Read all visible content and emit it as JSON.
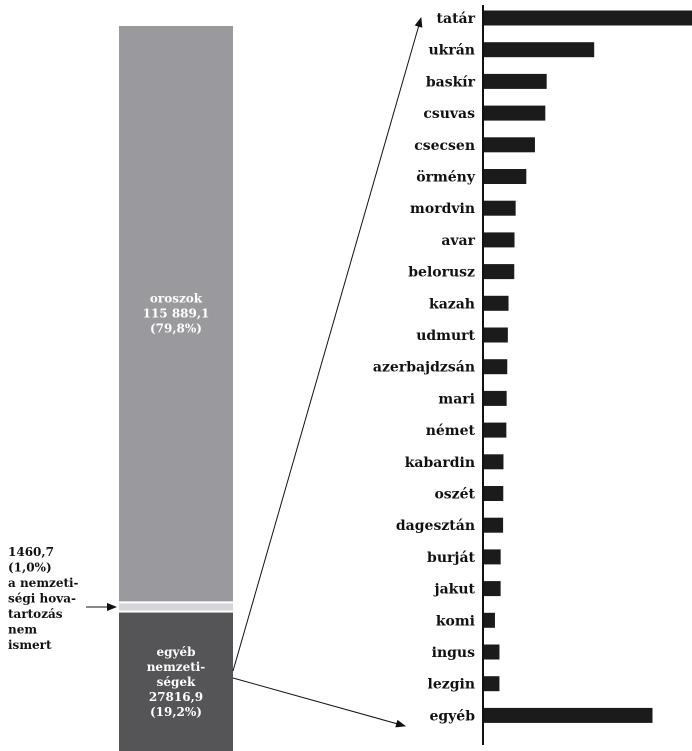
{
  "chart_data": {
    "type": "bar",
    "stacked_column": {
      "segments": [
        {
          "key": "orosz",
          "label_lines": [
            "oroszok",
            "115 889,1",
            "(79,8%)"
          ],
          "value": 115889.1,
          "percent": 79.8,
          "color": "#9a9a9e"
        },
        {
          "key": "ismeretlen",
          "label_lines": [],
          "value": 1460.7,
          "percent": 1.0,
          "color": "#d6d6d8"
        },
        {
          "key": "egyeb",
          "label_lines": [
            "egyéb",
            "nemzeti-",
            "ségek",
            "27816,9",
            "(19,2%)"
          ],
          "value": 27816.9,
          "percent": 19.2,
          "color": "#555557"
        }
      ],
      "unknown_note_lines": [
        "1460,7",
        "(1,0%)",
        "a nemzeti-",
        "ségi hova-",
        "tartozás",
        "nem",
        "ismert"
      ]
    },
    "breakdown": {
      "categories": [
        "tatár",
        "ukrán",
        "baskír",
        "csuvas",
        "csecsen",
        "örmény",
        "mordvin",
        "avar",
        "belorusz",
        "kazah",
        "udmurt",
        "azerbajdzsán",
        "mari",
        "német",
        "kabardin",
        "oszét",
        "dagesztán",
        "burját",
        "jakut",
        "komi",
        "ingus",
        "lezgin",
        "egyéb"
      ],
      "values": [
        5555,
        2943,
        1674,
        1637,
        1361,
        1130,
        845,
        815,
        808,
        655,
        637,
        621,
        605,
        597,
        520,
        515,
        510,
        445,
        444,
        293,
        413,
        412,
        4500
      ],
      "bar_color": "#1b1b1b"
    }
  }
}
